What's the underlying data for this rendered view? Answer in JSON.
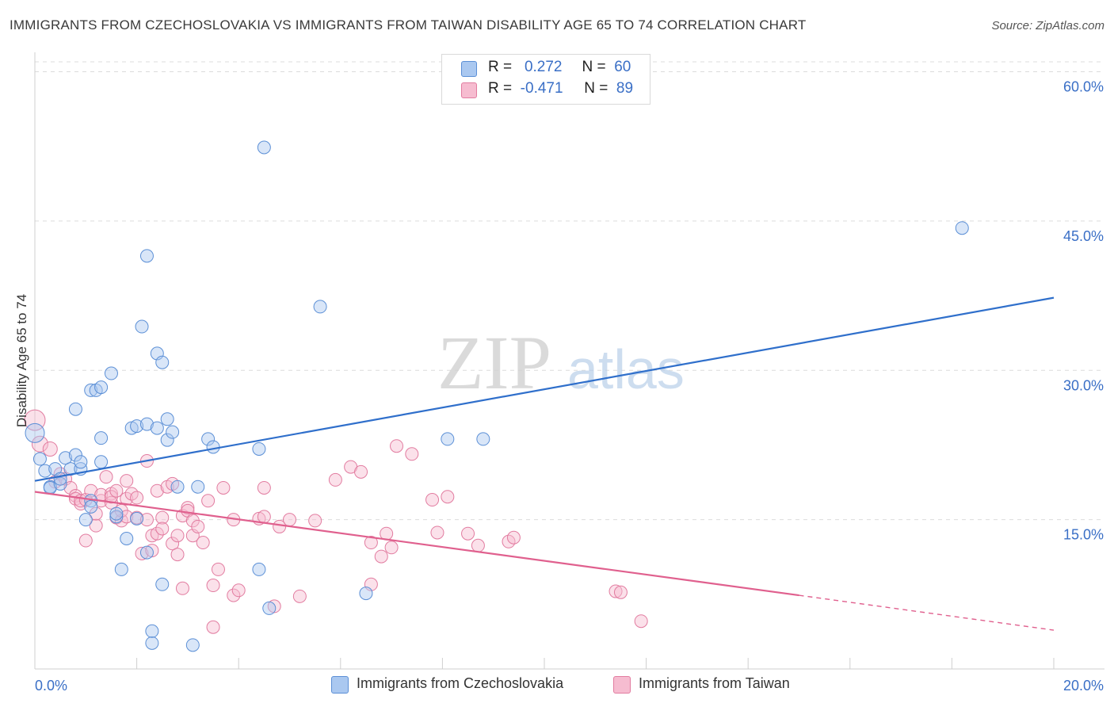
{
  "title": "IMMIGRANTS FROM CZECHOSLOVAKIA VS IMMIGRANTS FROM TAIWAN DISABILITY AGE 65 TO 74 CORRELATION CHART",
  "source": "Source: ZipAtlas.com",
  "watermark": {
    "zip": "ZIP",
    "atlas": "atlas"
  },
  "legend": {
    "rows": [
      {
        "r_label": "R =",
        "r_value": "0.272",
        "n_label": "N =",
        "n_value": "60"
      },
      {
        "r_label": "R =",
        "r_value": "-0.471",
        "n_label": "N =",
        "n_value": "89"
      }
    ]
  },
  "colors": {
    "czech_fill": "#aac8f0",
    "czech_stroke": "#5b8fd6",
    "czech_line": "#2f6fcb",
    "taiwan_fill": "#f6bcd0",
    "taiwan_stroke": "#e27ca0",
    "taiwan_line": "#e0608e",
    "tick_label": "#3a6fc6",
    "grid": "#dcdcdc"
  },
  "chart_data": {
    "type": "scatter",
    "title": "IMMIGRANTS FROM CZECHOSLOVAKIA VS IMMIGRANTS FROM TAIWAN DISABILITY AGE 65 TO 74 CORRELATION CHART",
    "xlabel": "",
    "ylabel": "Disability Age 65 to 74",
    "xlim": [
      0,
      20
    ],
    "ylim": [
      0,
      61
    ],
    "x_tick_labels": [
      "0.0%",
      "20.0%"
    ],
    "y_ticks": [
      15,
      30,
      45,
      60
    ],
    "y_tick_labels": [
      "15.0%",
      "30.0%",
      "45.0%",
      "60.0%"
    ],
    "grid": true,
    "legend_placement": "top-center",
    "series": [
      {
        "name": "Immigrants from Czechoslovakia",
        "trend": {
          "x": [
            0,
            20
          ],
          "y": [
            18.9,
            37.3
          ]
        },
        "points": [
          [
            0.0,
            23.7,
            12
          ],
          [
            0.1,
            21.1,
            8
          ],
          [
            0.2,
            19.9,
            8
          ],
          [
            0.3,
            18.3,
            8
          ],
          [
            0.3,
            18.2,
            8
          ],
          [
            0.4,
            20.1,
            8
          ],
          [
            0.5,
            18.6,
            8
          ],
          [
            0.5,
            19.1,
            8
          ],
          [
            0.6,
            21.2,
            8
          ],
          [
            0.7,
            20.1,
            8
          ],
          [
            0.8,
            21.5,
            8
          ],
          [
            0.8,
            26.1,
            8
          ],
          [
            0.9,
            20.1,
            8
          ],
          [
            0.9,
            20.8,
            8
          ],
          [
            1.0,
            15.0,
            8
          ],
          [
            1.1,
            16.9,
            8
          ],
          [
            1.1,
            16.3,
            8
          ],
          [
            1.1,
            28.0,
            8
          ],
          [
            1.2,
            28.0,
            8
          ],
          [
            1.3,
            28.3,
            8
          ],
          [
            1.3,
            20.8,
            8
          ],
          [
            1.3,
            23.2,
            8
          ],
          [
            1.5,
            29.7,
            8
          ],
          [
            1.6,
            15.3,
            8
          ],
          [
            1.6,
            15.6,
            8
          ],
          [
            1.7,
            10.0,
            8
          ],
          [
            1.8,
            13.1,
            8
          ],
          [
            1.9,
            24.2,
            8
          ],
          [
            2.0,
            24.4,
            8
          ],
          [
            2.0,
            15.1,
            8
          ],
          [
            2.1,
            34.4,
            8
          ],
          [
            2.2,
            24.6,
            8
          ],
          [
            2.2,
            11.7,
            8
          ],
          [
            2.2,
            41.5,
            8
          ],
          [
            2.3,
            2.6,
            8
          ],
          [
            2.3,
            3.8,
            8
          ],
          [
            2.4,
            24.2,
            8
          ],
          [
            2.4,
            31.7,
            8
          ],
          [
            2.5,
            30.8,
            8
          ],
          [
            2.5,
            8.5,
            8
          ],
          [
            2.6,
            25.1,
            8
          ],
          [
            2.6,
            23.0,
            8
          ],
          [
            2.7,
            23.8,
            8
          ],
          [
            2.8,
            18.3,
            8
          ],
          [
            3.1,
            2.4,
            8
          ],
          [
            3.2,
            18.3,
            8
          ],
          [
            3.4,
            23.1,
            8
          ],
          [
            3.5,
            22.3,
            8
          ],
          [
            4.4,
            10.0,
            8
          ],
          [
            4.4,
            22.1,
            8
          ],
          [
            4.5,
            52.4,
            8
          ],
          [
            4.6,
            6.1,
            8
          ],
          [
            5.6,
            36.4,
            8
          ],
          [
            6.5,
            7.6,
            8
          ],
          [
            8.1,
            23.1,
            8
          ],
          [
            8.8,
            23.1,
            8
          ],
          [
            18.2,
            44.3,
            8
          ]
        ]
      },
      {
        "name": "Immigrants from Taiwan",
        "trend": {
          "x": [
            0,
            15
          ],
          "y": [
            17.8,
            7.4
          ]
        },
        "trend_extension": {
          "x": [
            15,
            20
          ],
          "y": [
            7.4,
            3.9
          ]
        },
        "points": [
          [
            0.0,
            25.0,
            13
          ],
          [
            0.1,
            22.6,
            10
          ],
          [
            0.3,
            22.1,
            9
          ],
          [
            0.4,
            18.8,
            8
          ],
          [
            0.5,
            19.6,
            8
          ],
          [
            0.6,
            19.1,
            8
          ],
          [
            0.7,
            18.2,
            8
          ],
          [
            0.8,
            17.4,
            8
          ],
          [
            0.8,
            17.1,
            8
          ],
          [
            0.9,
            16.6,
            8
          ],
          [
            0.9,
            16.9,
            8
          ],
          [
            1.0,
            12.9,
            8
          ],
          [
            1.0,
            17.0,
            8
          ],
          [
            1.1,
            17.9,
            8
          ],
          [
            1.2,
            14.4,
            8
          ],
          [
            1.2,
            15.6,
            8
          ],
          [
            1.3,
            16.9,
            8
          ],
          [
            1.3,
            17.5,
            8
          ],
          [
            1.4,
            19.3,
            8
          ],
          [
            1.5,
            17.6,
            8
          ],
          [
            1.5,
            16.7,
            8
          ],
          [
            1.5,
            17.3,
            8
          ],
          [
            1.6,
            15.2,
            8
          ],
          [
            1.6,
            17.9,
            8
          ],
          [
            1.7,
            14.9,
            8
          ],
          [
            1.7,
            15.9,
            8
          ],
          [
            1.8,
            17.1,
            8
          ],
          [
            1.8,
            15.3,
            8
          ],
          [
            1.8,
            18.9,
            8
          ],
          [
            1.9,
            17.6,
            8
          ],
          [
            2.0,
            17.2,
            8
          ],
          [
            2.0,
            15.2,
            8
          ],
          [
            2.1,
            11.6,
            8
          ],
          [
            2.2,
            20.9,
            8
          ],
          [
            2.2,
            15.0,
            8
          ],
          [
            2.3,
            13.4,
            8
          ],
          [
            2.3,
            11.9,
            8
          ],
          [
            2.4,
            13.6,
            8
          ],
          [
            2.4,
            17.9,
            8
          ],
          [
            2.5,
            15.2,
            8
          ],
          [
            2.5,
            14.1,
            8
          ],
          [
            2.6,
            18.3,
            8
          ],
          [
            2.7,
            18.6,
            8
          ],
          [
            2.7,
            12.6,
            8
          ],
          [
            2.8,
            13.4,
            8
          ],
          [
            2.8,
            11.5,
            8
          ],
          [
            2.9,
            15.4,
            8
          ],
          [
            2.9,
            8.1,
            8
          ],
          [
            3.0,
            16.2,
            8
          ],
          [
            3.0,
            15.9,
            8
          ],
          [
            3.1,
            14.9,
            8
          ],
          [
            3.1,
            13.4,
            8
          ],
          [
            3.2,
            14.3,
            8
          ],
          [
            3.3,
            12.7,
            8
          ],
          [
            3.4,
            16.9,
            8
          ],
          [
            3.5,
            8.4,
            8
          ],
          [
            3.5,
            4.2,
            8
          ],
          [
            3.6,
            10.0,
            8
          ],
          [
            3.7,
            18.2,
            8
          ],
          [
            3.9,
            7.4,
            8
          ],
          [
            3.9,
            15.0,
            8
          ],
          [
            4.0,
            7.9,
            8
          ],
          [
            4.4,
            15.1,
            8
          ],
          [
            4.5,
            18.2,
            8
          ],
          [
            4.5,
            15.3,
            8
          ],
          [
            4.7,
            6.3,
            8
          ],
          [
            4.8,
            14.3,
            8
          ],
          [
            5.0,
            15.0,
            8
          ],
          [
            5.2,
            7.3,
            8
          ],
          [
            5.5,
            14.9,
            8
          ],
          [
            5.9,
            19.0,
            8
          ],
          [
            6.2,
            20.3,
            8
          ],
          [
            6.4,
            19.8,
            8
          ],
          [
            6.6,
            8.5,
            8
          ],
          [
            6.6,
            12.7,
            8
          ],
          [
            6.8,
            11.3,
            8
          ],
          [
            6.9,
            13.6,
            8
          ],
          [
            7.0,
            12.2,
            8
          ],
          [
            7.1,
            22.4,
            8
          ],
          [
            7.4,
            21.6,
            8
          ],
          [
            7.8,
            17.0,
            8
          ],
          [
            7.9,
            13.7,
            8
          ],
          [
            8.1,
            17.3,
            8
          ],
          [
            8.5,
            13.6,
            8
          ],
          [
            8.7,
            12.4,
            8
          ],
          [
            9.3,
            12.8,
            8
          ],
          [
            9.4,
            13.2,
            8
          ],
          [
            11.4,
            7.8,
            8
          ],
          [
            11.5,
            7.7,
            8
          ],
          [
            11.9,
            4.8,
            8
          ]
        ]
      }
    ]
  }
}
